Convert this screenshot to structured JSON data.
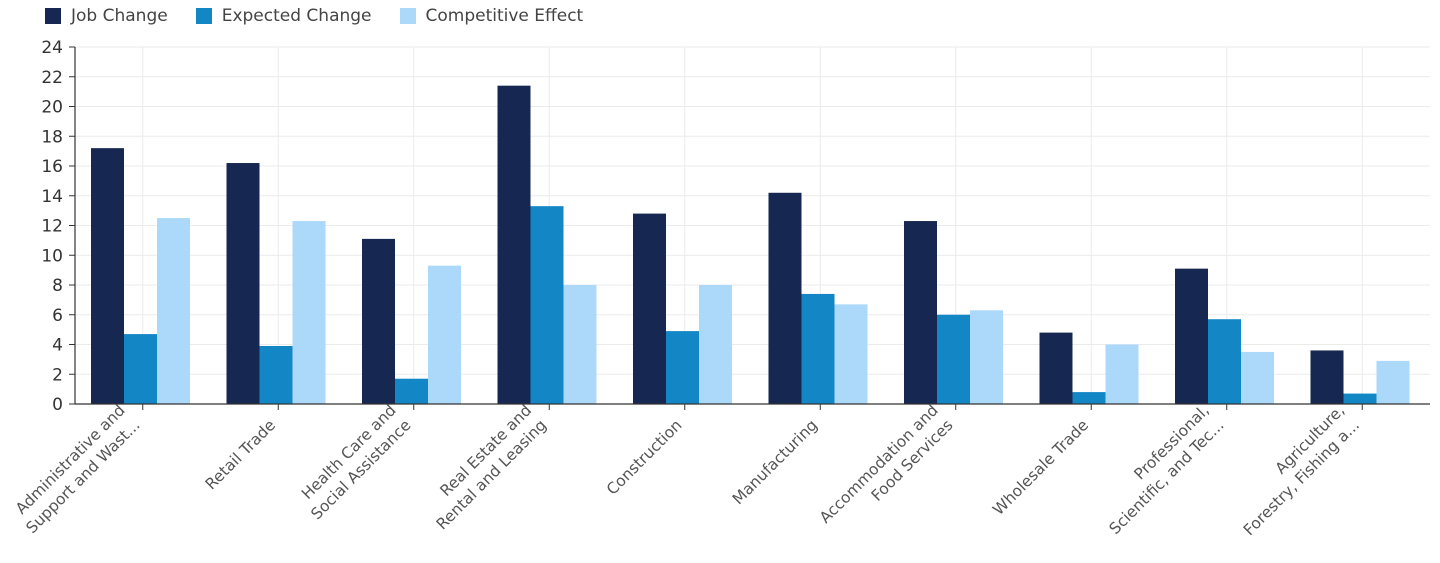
{
  "chart_data": {
    "type": "bar",
    "title": "",
    "xlabel": "",
    "ylabel": "",
    "ylim": [
      0,
      24
    ],
    "yticks": [
      0,
      2,
      4,
      6,
      8,
      10,
      12,
      14,
      16,
      18,
      20,
      22,
      24
    ],
    "grid": true,
    "legend_position": "top-left",
    "categories": [
      [
        "Administrative and",
        "Support and Wast..."
      ],
      [
        "Retail Trade"
      ],
      [
        "Health Care and",
        "Social Assistance"
      ],
      [
        "Real Estate and",
        "Rental and Leasing"
      ],
      [
        "Construction"
      ],
      [
        "Manufacturing"
      ],
      [
        "Accommodation and",
        "Food Services"
      ],
      [
        "Wholesale Trade"
      ],
      [
        "Professional,",
        "Scientific, and Tec..."
      ],
      [
        "Agriculture,",
        "Forestry, Fishing a..."
      ]
    ],
    "series": [
      {
        "name": "Job Change",
        "color": "#162851",
        "values": [
          17.2,
          16.2,
          11.1,
          21.4,
          12.8,
          14.2,
          12.3,
          4.8,
          9.1,
          3.6
        ]
      },
      {
        "name": "Expected Change",
        "color": "#1386c6",
        "values": [
          4.7,
          3.9,
          1.7,
          13.3,
          4.9,
          7.4,
          6.0,
          0.8,
          5.7,
          0.7
        ]
      },
      {
        "name": "Competitive Effect",
        "color": "#acd9fa",
        "values": [
          12.5,
          12.3,
          9.3,
          8.0,
          8.0,
          6.7,
          6.3,
          4.0,
          3.5,
          2.9
        ]
      }
    ]
  }
}
